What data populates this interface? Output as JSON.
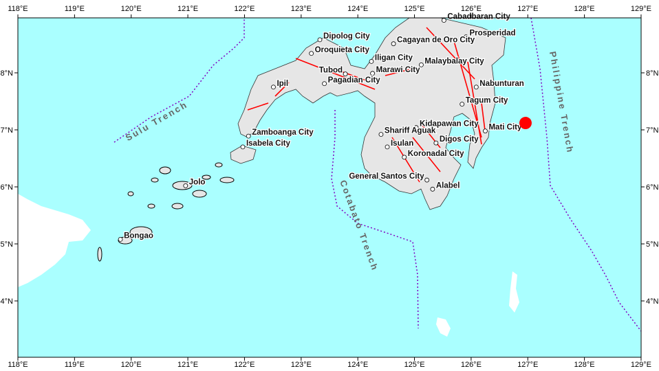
{
  "map": {
    "extent": {
      "lon": [
        118,
        129
      ],
      "lat": [
        3,
        9
      ]
    },
    "colors": {
      "sea": "#aaffff",
      "land": "#e6e6e6",
      "foreign_land": "#ffffff",
      "fault": "#ff0000",
      "trench": "#8000c0",
      "epicenter": "#ff0000"
    },
    "lon_ticks": [
      "118°E",
      "119°E",
      "120°E",
      "121°E",
      "122°E",
      "123°E",
      "124°E",
      "125°E",
      "126°E",
      "127°E",
      "128°E",
      "129°E"
    ],
    "lat_ticks": [
      "8°N",
      "7°N",
      "6°N",
      "5°N",
      "4°N"
    ],
    "epicenter": {
      "lon": 126.96,
      "lat": 7.12
    },
    "trenches": [
      {
        "name": "Sulu Trench"
      },
      {
        "name": "Cotabato Trench"
      },
      {
        "name": "Philippine Trench"
      }
    ],
    "cities": [
      {
        "name": "Cabadbaran City",
        "lon": 125.52,
        "lat": 8.92
      },
      {
        "name": "Prosperidad",
        "lon": 125.91,
        "lat": 8.63
      },
      {
        "name": "Dipolog City",
        "lon": 123.33,
        "lat": 8.58
      },
      {
        "name": "Cagayan de Oro City",
        "lon": 124.63,
        "lat": 8.51
      },
      {
        "name": "Oroquieta City",
        "lon": 123.18,
        "lat": 8.34
      },
      {
        "name": "Iligan City",
        "lon": 124.24,
        "lat": 8.2
      },
      {
        "name": "Tubod",
        "lon": 123.78,
        "lat": 7.98
      },
      {
        "name": "Marawi City",
        "lon": 124.26,
        "lat": 7.99
      },
      {
        "name": "Malaybalay City",
        "lon": 125.12,
        "lat": 8.14
      },
      {
        "name": "Ipil",
        "lon": 122.51,
        "lat": 7.75
      },
      {
        "name": "Pagadian City",
        "lon": 123.41,
        "lat": 7.81
      },
      {
        "name": "Nabunturan",
        "lon": 126.09,
        "lat": 7.75
      },
      {
        "name": "Tagum City",
        "lon": 125.84,
        "lat": 7.45
      },
      {
        "name": "Kidapawan City",
        "lon": 125.03,
        "lat": 7.04
      },
      {
        "name": "Mati City",
        "lon": 126.25,
        "lat": 6.98
      },
      {
        "name": "Shariff Aguak",
        "lon": 124.41,
        "lat": 6.92
      },
      {
        "name": "Digos City",
        "lon": 125.38,
        "lat": 6.77
      },
      {
        "name": "Zamboanga City",
        "lon": 122.07,
        "lat": 6.89
      },
      {
        "name": "Isabela City",
        "lon": 121.97,
        "lat": 6.7
      },
      {
        "name": "Isulan",
        "lon": 124.52,
        "lat": 6.7
      },
      {
        "name": "Koronadal City",
        "lon": 124.82,
        "lat": 6.52
      },
      {
        "name": "General Santos City",
        "lon": 125.22,
        "lat": 6.12
      },
      {
        "name": "Alabel",
        "lon": 125.32,
        "lat": 5.96
      },
      {
        "name": "Jolo",
        "lon": 120.96,
        "lat": 6.02
      },
      {
        "name": "Bongao",
        "lon": 119.81,
        "lat": 5.08
      }
    ]
  }
}
